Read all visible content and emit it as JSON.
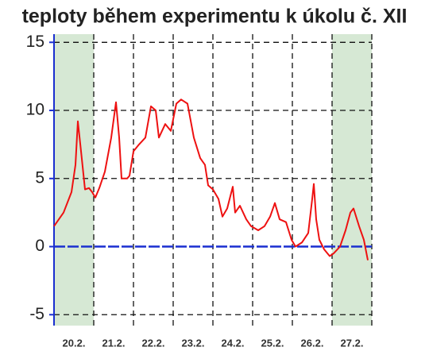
{
  "chart_data": {
    "type": "line",
    "title": "teploty během experimentu k úkolu č. XII",
    "categories": [
      "20.2.",
      "21.2.",
      "22.2.",
      "23.2.",
      "24.2.",
      "25.2.",
      "26.2.",
      "27.2."
    ],
    "xlim": [
      0,
      8
    ],
    "xticks": [
      1,
      2,
      3,
      4,
      5,
      6,
      7,
      8
    ],
    "ylim": [
      -5.8,
      15.6
    ],
    "yticks": [
      -5,
      0,
      5,
      10,
      15
    ],
    "grid": true,
    "shaded": [
      [
        0,
        1
      ],
      [
        7,
        8
      ]
    ],
    "shade_color": "#d6e8d4",
    "axis_color": "#1a2fd0",
    "series": [
      {
        "color": "#ee1111",
        "x": [
          0,
          0.24,
          0.44,
          0.54,
          0.6,
          0.68,
          0.78,
          0.88,
          0.96,
          1.04,
          1.14,
          1.28,
          1.44,
          1.56,
          1.64,
          1.7,
          1.84,
          1.9,
          2.0,
          2.14,
          2.3,
          2.44,
          2.56,
          2.64,
          2.8,
          2.94,
          3.08,
          3.2,
          3.36,
          3.52,
          3.68,
          3.8,
          3.88,
          4.0,
          4.14,
          4.24,
          4.36,
          4.5,
          4.56,
          4.68,
          4.84,
          4.96,
          5.14,
          5.3,
          5.44,
          5.56,
          5.68,
          5.84,
          5.98,
          6.08,
          6.24,
          6.4,
          6.5,
          6.54,
          6.6,
          6.68,
          6.8,
          6.94,
          7.04,
          7.2,
          7.34,
          7.46,
          7.54,
          7.68,
          7.8,
          7.9
        ],
        "values": [
          1.5,
          2.5,
          4,
          6,
          9.2,
          7,
          4.2,
          4.3,
          4.0,
          3.6,
          4.3,
          5.5,
          8,
          10.6,
          8,
          5.0,
          5.0,
          5.2,
          7,
          7.5,
          8,
          10.3,
          10,
          8,
          9,
          8.5,
          10.5,
          10.8,
          10.5,
          8,
          6.5,
          6,
          4.5,
          4.2,
          3.5,
          2.2,
          2.8,
          4.4,
          2.5,
          3,
          2,
          1.5,
          1.2,
          1.5,
          2.2,
          3.2,
          2.0,
          1.8,
          0.5,
          0,
          0.3,
          1,
          3.5,
          4.6,
          2,
          0.5,
          -0.2,
          -0.7,
          -0.5,
          0,
          1.2,
          2.5,
          2.8,
          1.5,
          0.5,
          -1
        ]
      }
    ]
  }
}
